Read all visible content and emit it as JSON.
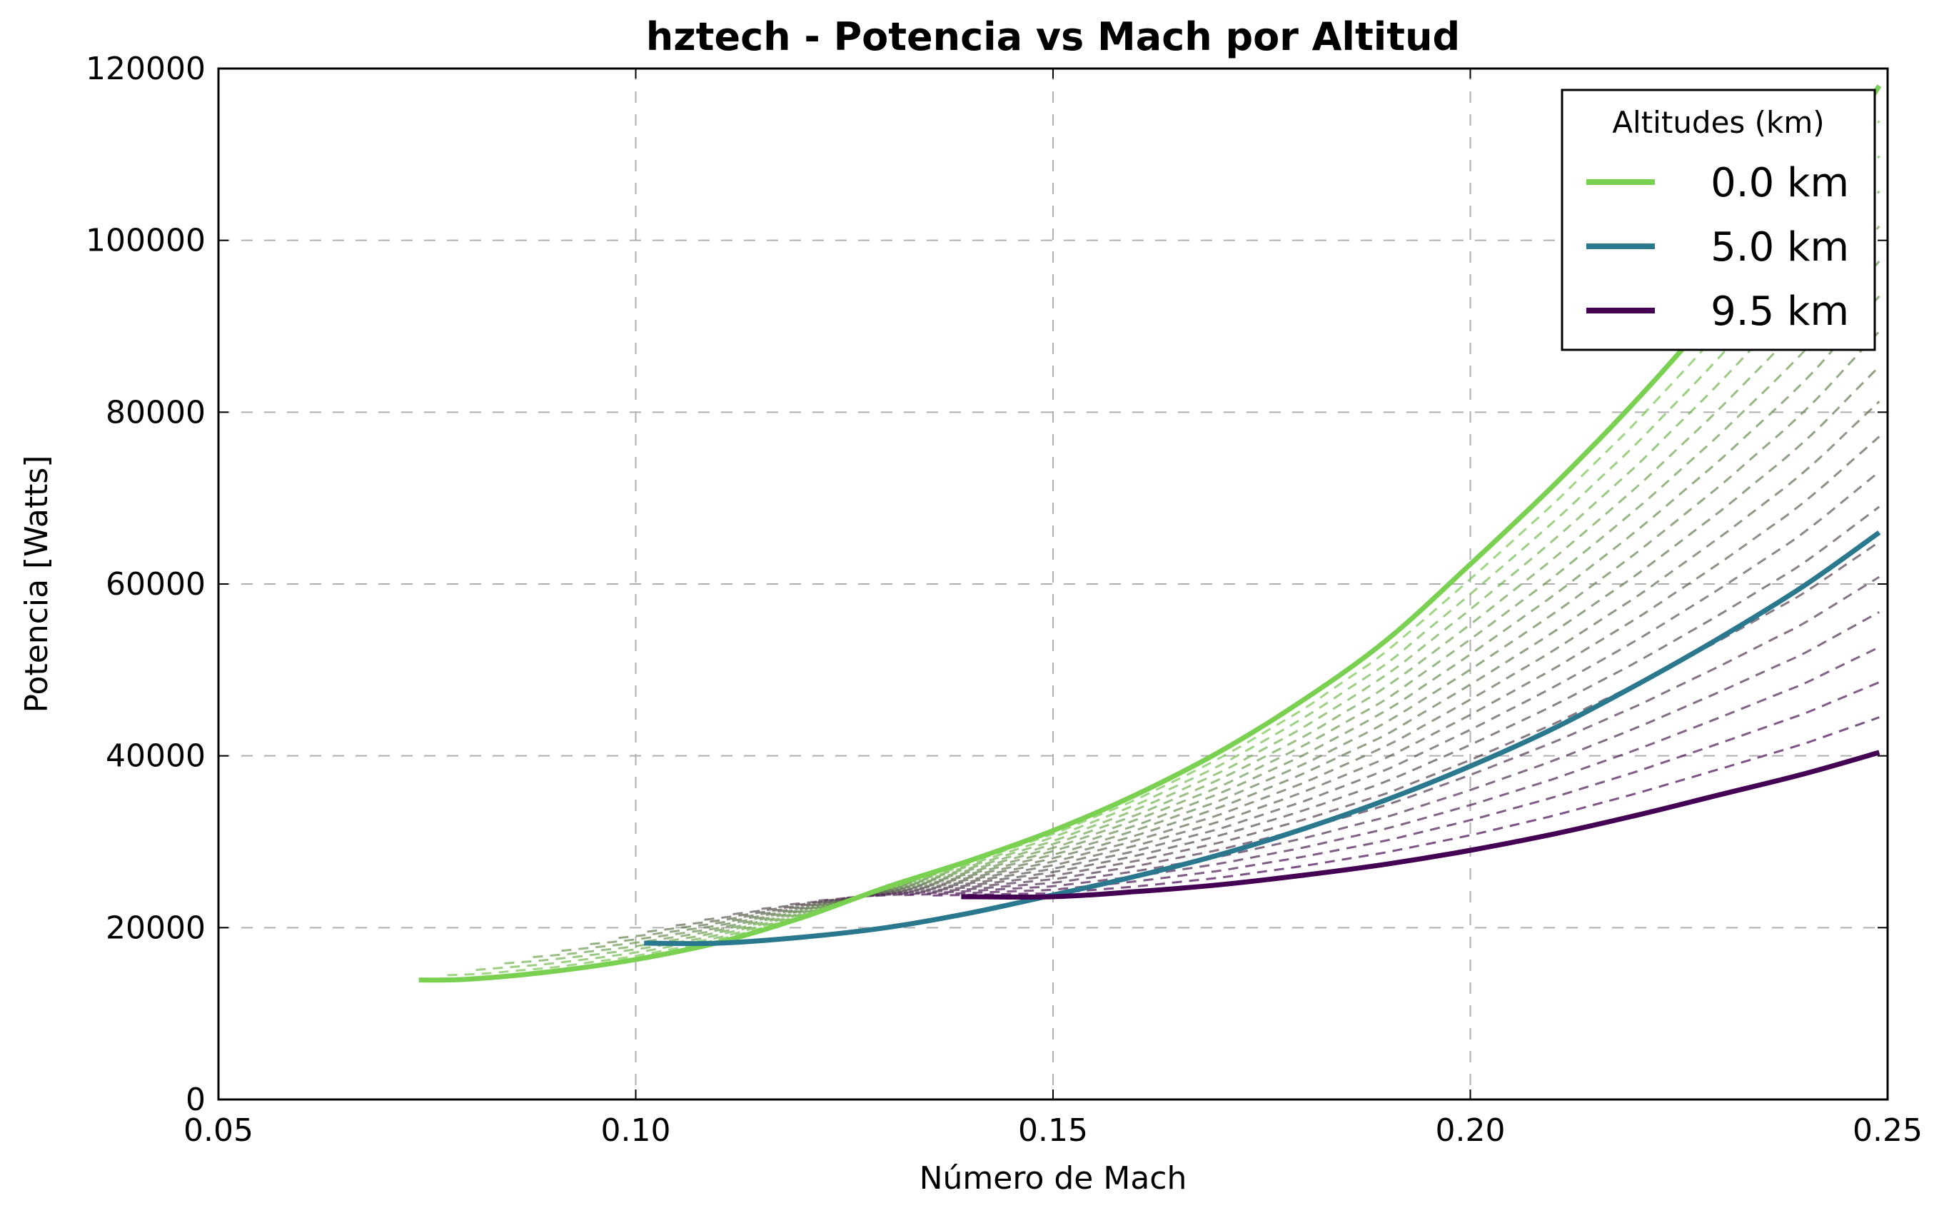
{
  "chart_data": {
    "type": "line",
    "title": "hztech - Potencia vs Mach por Altitud",
    "xlabel": "Número de Mach",
    "ylabel": "Potencia [Watts]",
    "xlim": [
      0.05,
      0.25
    ],
    "ylim": [
      0,
      120000
    ],
    "xticks": [
      "0.05",
      "0.10",
      "0.15",
      "0.20",
      "0.25"
    ],
    "yticks": [
      "0",
      "20000",
      "40000",
      "60000",
      "80000",
      "100000",
      "120000"
    ],
    "grid": true,
    "legend": {
      "title": "Altitudes (km)",
      "placement": "top-right"
    },
    "series": [
      {
        "name": "0.0 km",
        "color": "#7ad151",
        "x": [
          0.074,
          0.08,
          0.09,
          0.1,
          0.11,
          0.12,
          0.13,
          0.14,
          0.15,
          0.16,
          0.17,
          0.18,
          0.19,
          0.2,
          0.21,
          0.22,
          0.23,
          0.24,
          0.249
        ],
        "y": [
          13900,
          14000,
          14900,
          16300,
          18300,
          21200,
          24700,
          27800,
          31300,
          35500,
          40500,
          46500,
          53500,
          62300,
          71500,
          81500,
          92500,
          104500,
          118000
        ]
      },
      {
        "name": "5.0 km",
        "color": "#2a788e",
        "x": [
          0.101,
          0.11,
          0.12,
          0.13,
          0.14,
          0.15,
          0.16,
          0.17,
          0.18,
          0.19,
          0.2,
          0.21,
          0.22,
          0.23,
          0.24,
          0.249
        ],
        "y": [
          18200,
          18200,
          18900,
          20000,
          21700,
          23800,
          26000,
          28500,
          31500,
          34900,
          38800,
          43200,
          48300,
          53800,
          59800,
          66000
        ]
      },
      {
        "name": "9.5 km",
        "color": "#440154",
        "x": [
          0.139,
          0.15,
          0.16,
          0.17,
          0.18,
          0.19,
          0.2,
          0.21,
          0.22,
          0.23,
          0.24,
          0.249
        ],
        "y": [
          23600,
          23600,
          24200,
          25000,
          26100,
          27400,
          29000,
          30900,
          33100,
          35500,
          37900,
          40400
        ]
      }
    ],
    "intermediate_curves": {
      "description": "dashed curves for intermediate altitudes between 0.0 km and 9.5 km",
      "count": 18,
      "color_start": "#7ad151",
      "color_end": "#440154"
    }
  }
}
